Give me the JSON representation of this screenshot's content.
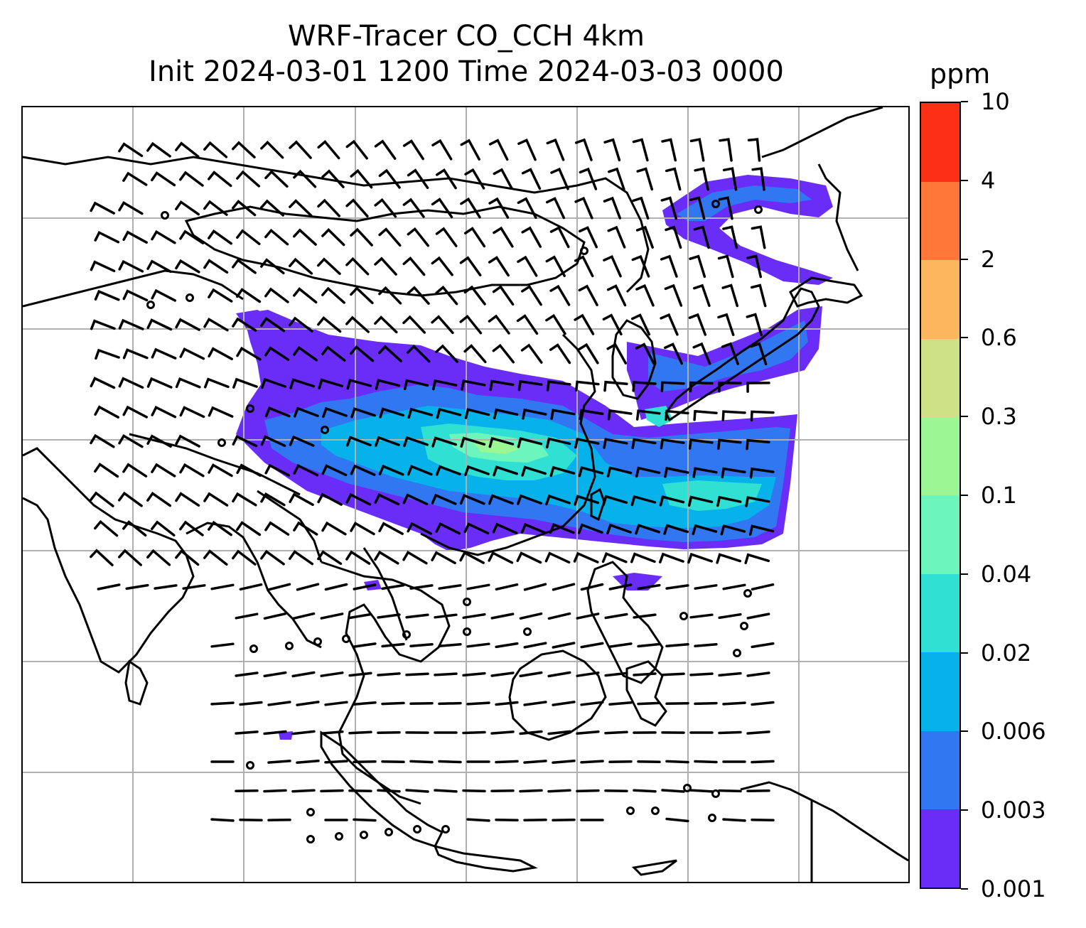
{
  "title": {
    "line1": "WRF-Tracer CO_CCH 4km",
    "line2": "Init 2024-03-01 1200 Time 2024-03-03 0000"
  },
  "colorbar": {
    "unit": "ppm",
    "levels": [
      "0.001",
      "0.003",
      "0.006",
      "0.02",
      "0.04",
      "0.1",
      "0.3",
      "0.6",
      "2",
      "4",
      "10"
    ],
    "colors": [
      "#6a2df7",
      "#3177f2",
      "#06b2e9",
      "#2fe0d3",
      "#6cf6bd",
      "#9af794",
      "#cfe187",
      "#fdb55e",
      "#ff7739",
      "#fd2f14"
    ]
  },
  "map": {
    "region": "East and Southeast Asia",
    "gridlines": true,
    "overlays": [
      "coastlines",
      "country borders",
      "wind barbs",
      "CO_CCH tracer concentration"
    ]
  }
}
